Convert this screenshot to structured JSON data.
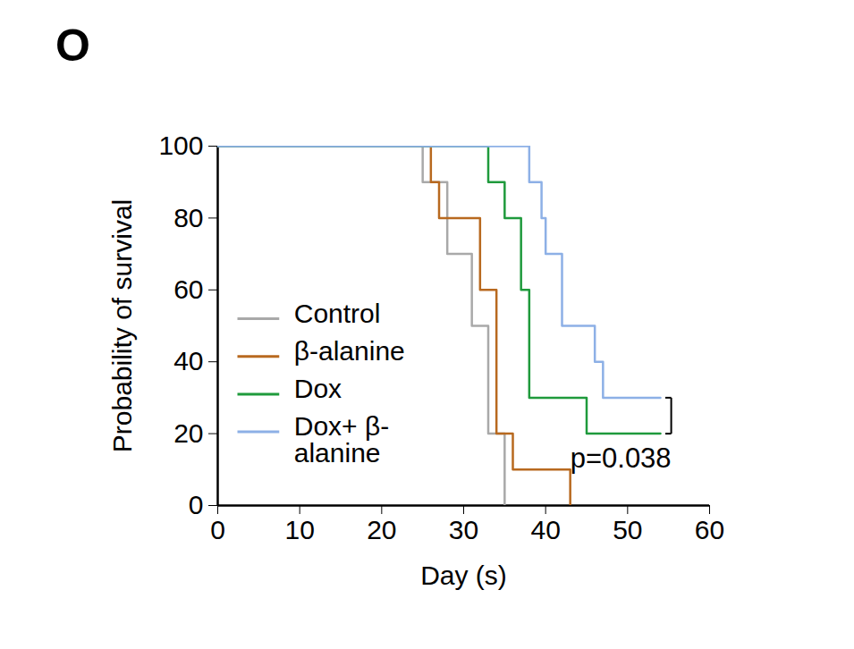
{
  "chart_data": {
    "type": "line",
    "title": "O",
    "x_label": "Day (s)",
    "y_label": "Probability of survival",
    "xlim": [
      0,
      60
    ],
    "ylim": [
      0,
      100
    ],
    "xticks": [
      0,
      10,
      20,
      30,
      40,
      50,
      60
    ],
    "yticks": [
      0,
      20,
      40,
      60,
      80,
      100
    ],
    "grid": false,
    "legend": "lower left",
    "line_style": "step",
    "series": [
      {
        "name": "Control",
        "color": "#a9a9a9",
        "x": [
          0,
          25,
          28,
          31,
          33,
          35
        ],
        "values": [
          100,
          90,
          70,
          50,
          20,
          0
        ]
      },
      {
        "name": "β-alanine",
        "color": "#b8691f",
        "x": [
          0,
          26,
          27,
          32,
          34,
          36,
          43
        ],
        "values": [
          100,
          90,
          80,
          60,
          20,
          10,
          0
        ]
      },
      {
        "name": "Dox",
        "color": "#1f9a3c",
        "x": [
          0,
          33,
          35,
          37,
          38,
          45,
          54
        ],
        "values": [
          100,
          90,
          80,
          60,
          30,
          20,
          20
        ]
      },
      {
        "name": "Dox+ β-alanine",
        "color": "#8db0e6",
        "x": [
          0,
          38,
          39.5,
          40,
          42,
          46,
          47,
          54
        ],
        "values": [
          100,
          90,
          80,
          70,
          50,
          40,
          30,
          30
        ]
      }
    ],
    "annotations": [
      {
        "text": "p=0.038"
      }
    ]
  }
}
